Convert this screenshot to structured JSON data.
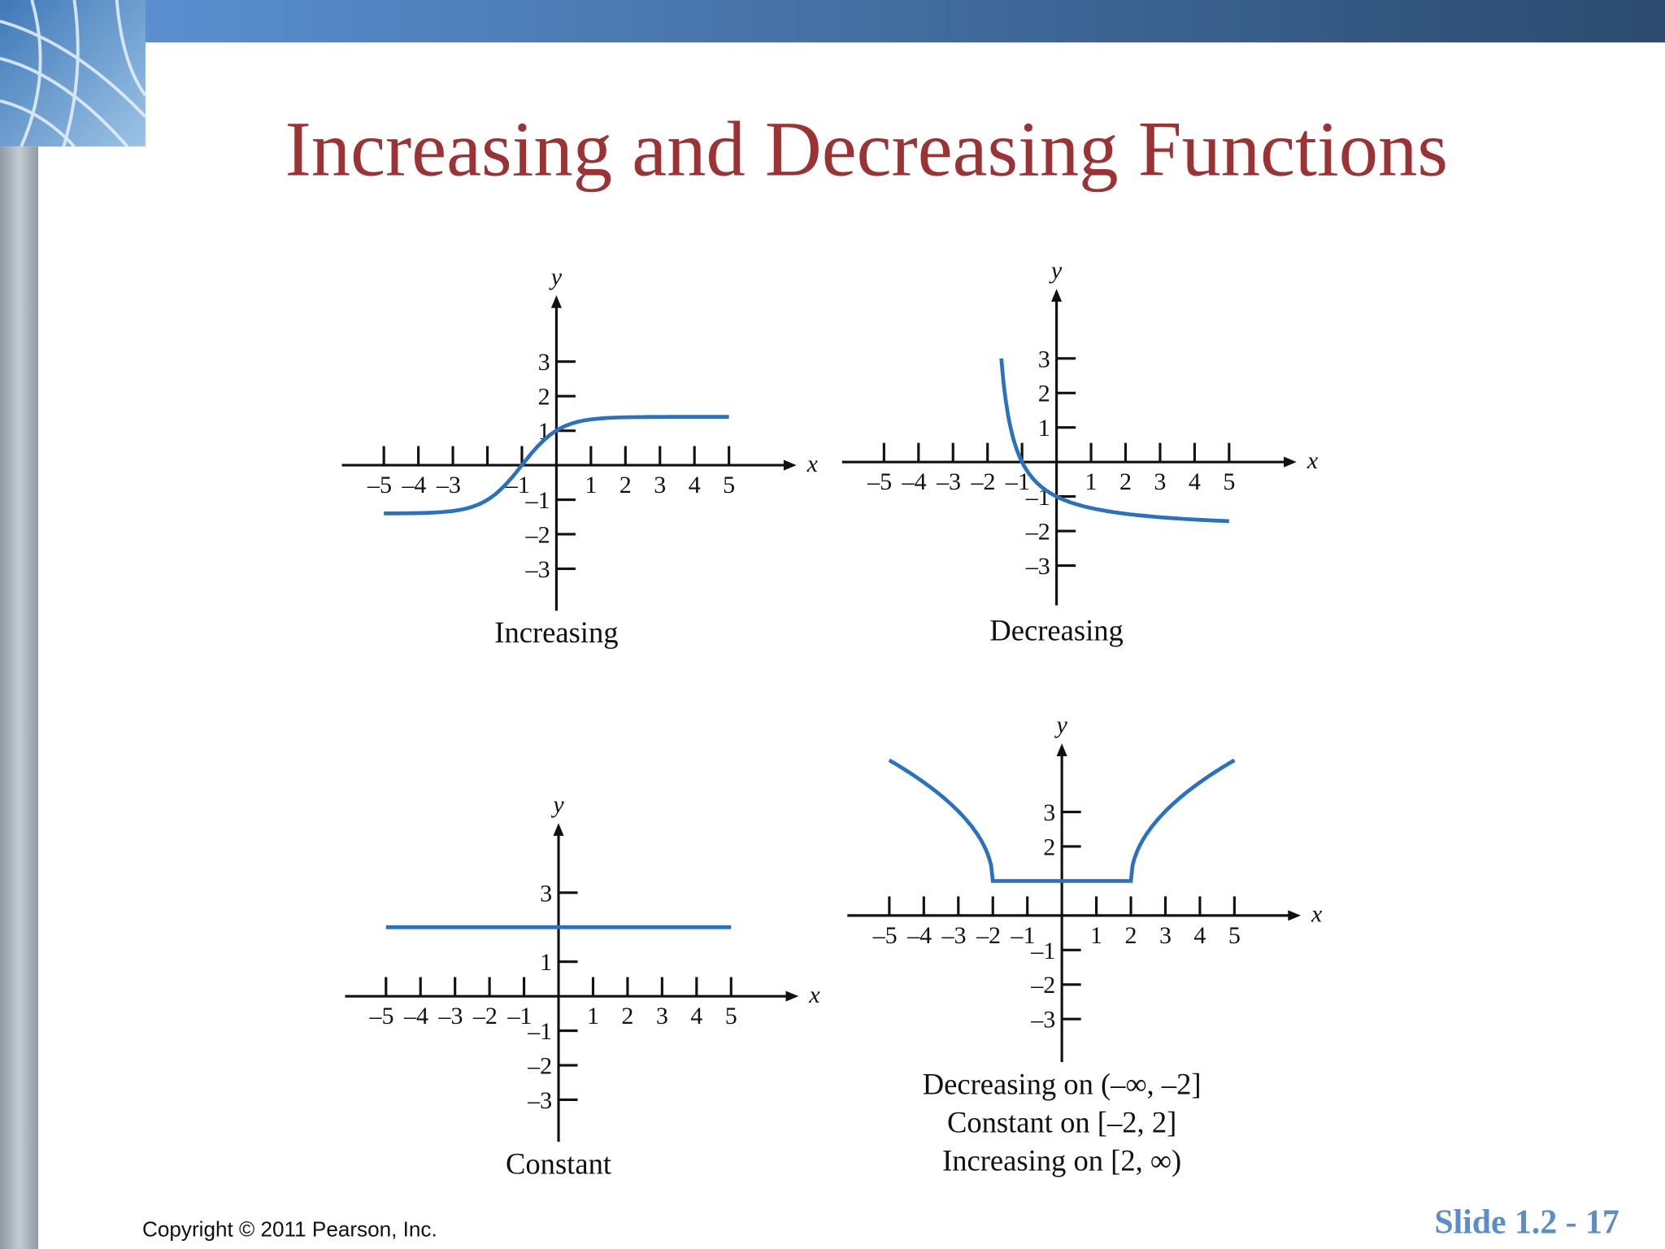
{
  "title": "Increasing and Decreasing Functions",
  "graphs": [
    {
      "caption": [
        "Increasing"
      ],
      "x_axis_label": "x",
      "y_axis_label": "y",
      "x_ticks": [
        {
          "value": -5,
          "label": "–5"
        },
        {
          "value": -4,
          "label": "–4"
        },
        {
          "value": -3,
          "label": "–3"
        },
        {
          "value": -2
        },
        {
          "value": -1,
          "label": "–1"
        },
        {
          "value": 1,
          "label": "1"
        },
        {
          "value": 2,
          "label": "2"
        },
        {
          "value": 3,
          "label": "3"
        },
        {
          "value": 4,
          "label": "4"
        },
        {
          "value": 5,
          "label": "5"
        }
      ],
      "y_ticks": [
        {
          "value": 3,
          "label": "3"
        },
        {
          "value": 2,
          "label": "2"
        },
        {
          "value": 1,
          "label": "1"
        },
        {
          "value": -1,
          "label": "–1"
        },
        {
          "value": -2,
          "label": "–2"
        },
        {
          "value": -3,
          "label": "–3"
        }
      ]
    },
    {
      "caption": [
        "Decreasing"
      ],
      "x_axis_label": "x",
      "y_axis_label": "y",
      "x_ticks": [
        {
          "value": -5,
          "label": "–5"
        },
        {
          "value": -4,
          "label": "–4"
        },
        {
          "value": -3,
          "label": "–3"
        },
        {
          "value": -2,
          "label": "–2"
        },
        {
          "value": -1,
          "label": "–1"
        },
        {
          "value": 1,
          "label": "1"
        },
        {
          "value": 2,
          "label": "2"
        },
        {
          "value": 3,
          "label": "3"
        },
        {
          "value": 4,
          "label": "4"
        },
        {
          "value": 5,
          "label": "5"
        }
      ],
      "y_ticks": [
        {
          "value": 3,
          "label": "3"
        },
        {
          "value": 2,
          "label": "2"
        },
        {
          "value": 1,
          "label": "1"
        },
        {
          "value": -1,
          "label": "–1"
        },
        {
          "value": -2,
          "label": "–2"
        },
        {
          "value": -3,
          "label": "–3"
        }
      ]
    },
    {
      "caption": [
        "Constant"
      ],
      "x_axis_label": "x",
      "y_axis_label": "y",
      "x_ticks": [
        {
          "value": -5,
          "label": "–5"
        },
        {
          "value": -4,
          "label": "–4"
        },
        {
          "value": -3,
          "label": "–3"
        },
        {
          "value": -2,
          "label": "–2"
        },
        {
          "value": -1,
          "label": "–1"
        },
        {
          "value": 1,
          "label": "1"
        },
        {
          "value": 2,
          "label": "2"
        },
        {
          "value": 3,
          "label": "3"
        },
        {
          "value": 4,
          "label": "4"
        },
        {
          "value": 5,
          "label": "5"
        }
      ],
      "y_ticks": [
        {
          "value": 3,
          "label": "3"
        },
        {
          "value": 1,
          "label": "1"
        },
        {
          "value": -1,
          "label": "–1"
        },
        {
          "value": -2,
          "label": "–2"
        },
        {
          "value": -3,
          "label": "–3"
        }
      ]
    },
    {
      "caption": [
        "Decreasing on (–∞, –2]",
        "Constant on [–2, 2]",
        "Increasing on [2, ∞)"
      ],
      "x_axis_label": "x",
      "y_axis_label": "y",
      "x_ticks": [
        {
          "value": -5,
          "label": "–5"
        },
        {
          "value": -4,
          "label": "–4"
        },
        {
          "value": -3,
          "label": "–3"
        },
        {
          "value": -2,
          "label": "–2"
        },
        {
          "value": -1,
          "label": "–1"
        },
        {
          "value": 1,
          "label": "1"
        },
        {
          "value": 2,
          "label": "2"
        },
        {
          "value": 3,
          "label": "3"
        },
        {
          "value": 4,
          "label": "4"
        },
        {
          "value": 5,
          "label": "5"
        }
      ],
      "y_ticks": [
        {
          "value": 3,
          "label": "3"
        },
        {
          "value": 2,
          "label": "2"
        },
        {
          "value": -1,
          "label": "–1"
        },
        {
          "value": -2,
          "label": "–2"
        },
        {
          "value": -3,
          "label": "–3"
        }
      ]
    }
  ],
  "copyright": "Copyright © 2011 Pearson, Inc.",
  "slide_number": "Slide 1.2 - 17"
}
